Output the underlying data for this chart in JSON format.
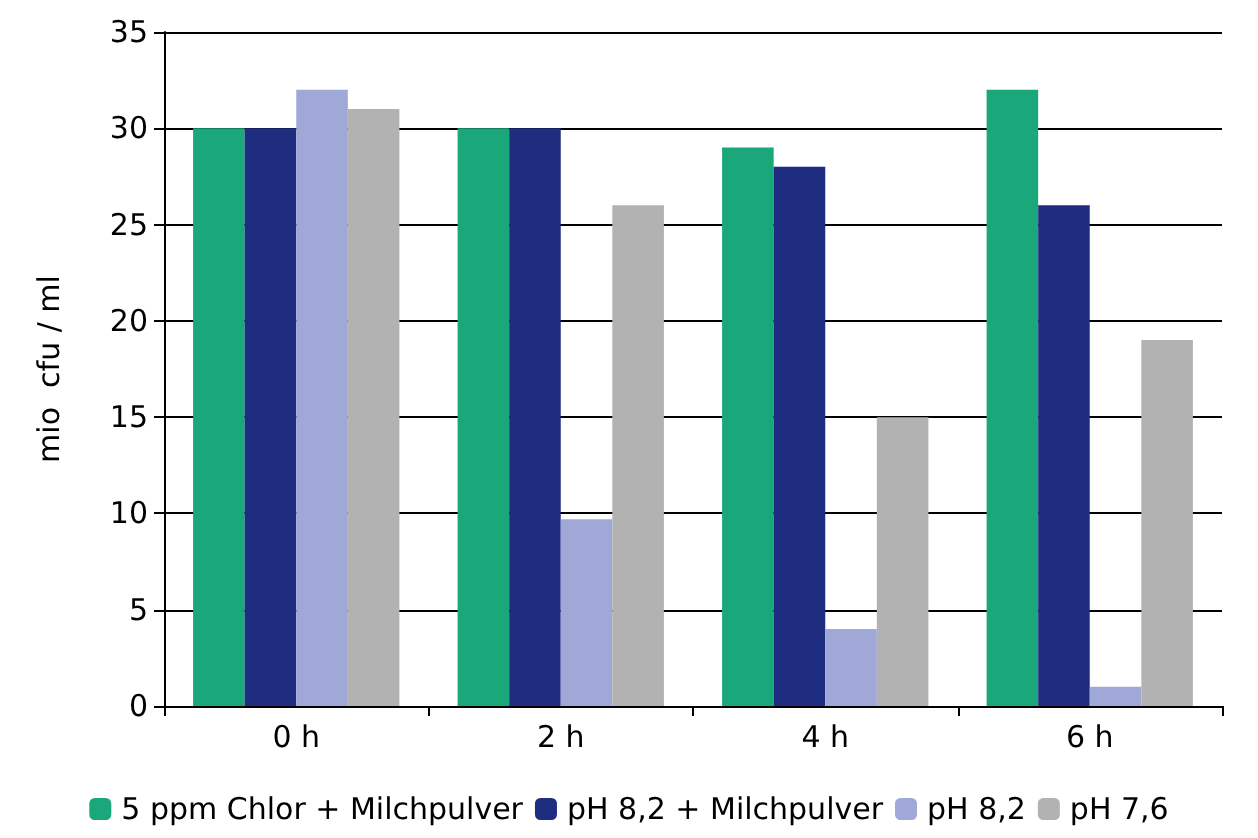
{
  "chart_data": {
    "type": "bar",
    "ylabel": "mio  cfu / ml",
    "categories": [
      "0 h",
      "2 h",
      "4 h",
      "6 h"
    ],
    "series": [
      {
        "name": "5 ppm Chlor + Milchpulver",
        "color": "#1aa87a",
        "values": [
          30,
          30,
          29,
          32
        ]
      },
      {
        "name": "pH 8,2 + Milchpulver",
        "color": "#1f2d80",
        "values": [
          30,
          30,
          28,
          26
        ]
      },
      {
        "name": "pH 8,2",
        "color": "#a0a8d8",
        "values": [
          32,
          9.7,
          4,
          1
        ]
      },
      {
        "name": "pH 7,6",
        "color": "#b2b2b2",
        "values": [
          31,
          26,
          15,
          19
        ]
      }
    ],
    "ylim": [
      0,
      35
    ],
    "yticks": [
      0,
      5,
      10,
      15,
      20,
      25,
      30,
      35
    ],
    "grid": "y",
    "legend": "bottom"
  }
}
